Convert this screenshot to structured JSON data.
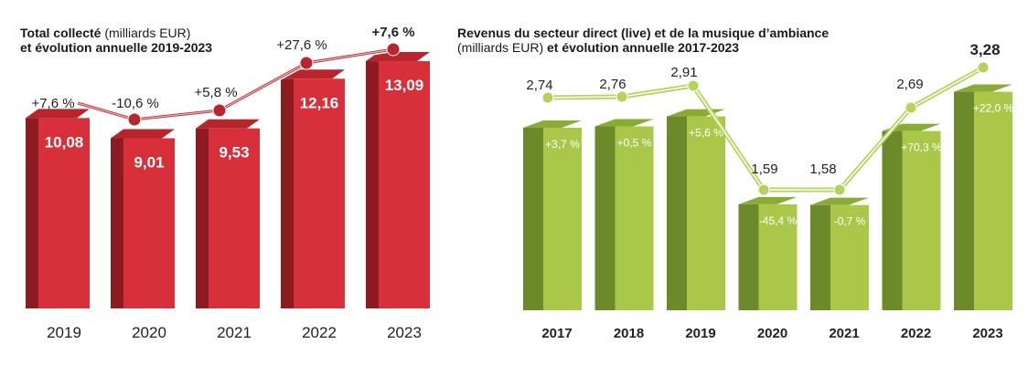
{
  "charts": [
    {
      "id": "left",
      "title_bold": "Total collecté",
      "title_light": " (milliards EUR)",
      "title_line2": "et évolution annuelle 2019-2023"
    },
    {
      "id": "right",
      "title_line1": "Revenus du secteur direct (live) et de la musique d’ambiance",
      "title_light": "(milliards EUR)",
      "title_line2_bold": " et évolution annuelle 2017-2023"
    }
  ],
  "chart_data": [
    {
      "type": "bar",
      "title": "Total collecté (milliards EUR) et évolution annuelle 2019-2023",
      "categories": [
        "2019",
        "2020",
        "2021",
        "2022",
        "2023"
      ],
      "values": [
        10.08,
        9.01,
        9.53,
        12.16,
        13.09
      ],
      "value_labels": [
        "10,08",
        "9,01",
        "9,53",
        "12,16",
        "13,09"
      ],
      "change_labels": [
        "+7,6 %",
        "-10,6 %",
        "+5,8 %",
        "+27,6 %",
        "+7,6 %"
      ],
      "line_series": {
        "name": "évolution annuelle",
        "values": [
          7.6,
          -10.6,
          5.8,
          27.6,
          7.6
        ]
      },
      "colors": {
        "front": "#d7303a",
        "side": "#8f1b22",
        "top": "#b8252d",
        "line": "#b8252d"
      }
    },
    {
      "type": "bar",
      "title": "Revenus du secteur direct (live) et de la musique d’ambiance (milliards EUR) et évolution annuelle 2017-2023",
      "categories": [
        "2017",
        "2018",
        "2019",
        "2020",
        "2021",
        "2022",
        "2023"
      ],
      "values": [
        2.74,
        2.76,
        2.91,
        1.59,
        1.58,
        2.69,
        3.28
      ],
      "value_labels": [
        "2,74",
        "2,76",
        "2,91",
        "1,59",
        "1,58",
        "2,69",
        "3,28"
      ],
      "change_labels": [
        "+3,7 %",
        "+0,5 %",
        "+5,6 %",
        "-45,4 %",
        "-0,7 %",
        "+70,3 %",
        "+22,0 %"
      ],
      "line_series": {
        "name": "valeur",
        "values": [
          2.74,
          2.76,
          2.91,
          1.59,
          1.58,
          2.69,
          3.28
        ]
      },
      "colors": {
        "front": "#a9c84a",
        "side": "#6d8a2a",
        "top": "#8aab36",
        "line": "#b5d35a"
      }
    }
  ]
}
